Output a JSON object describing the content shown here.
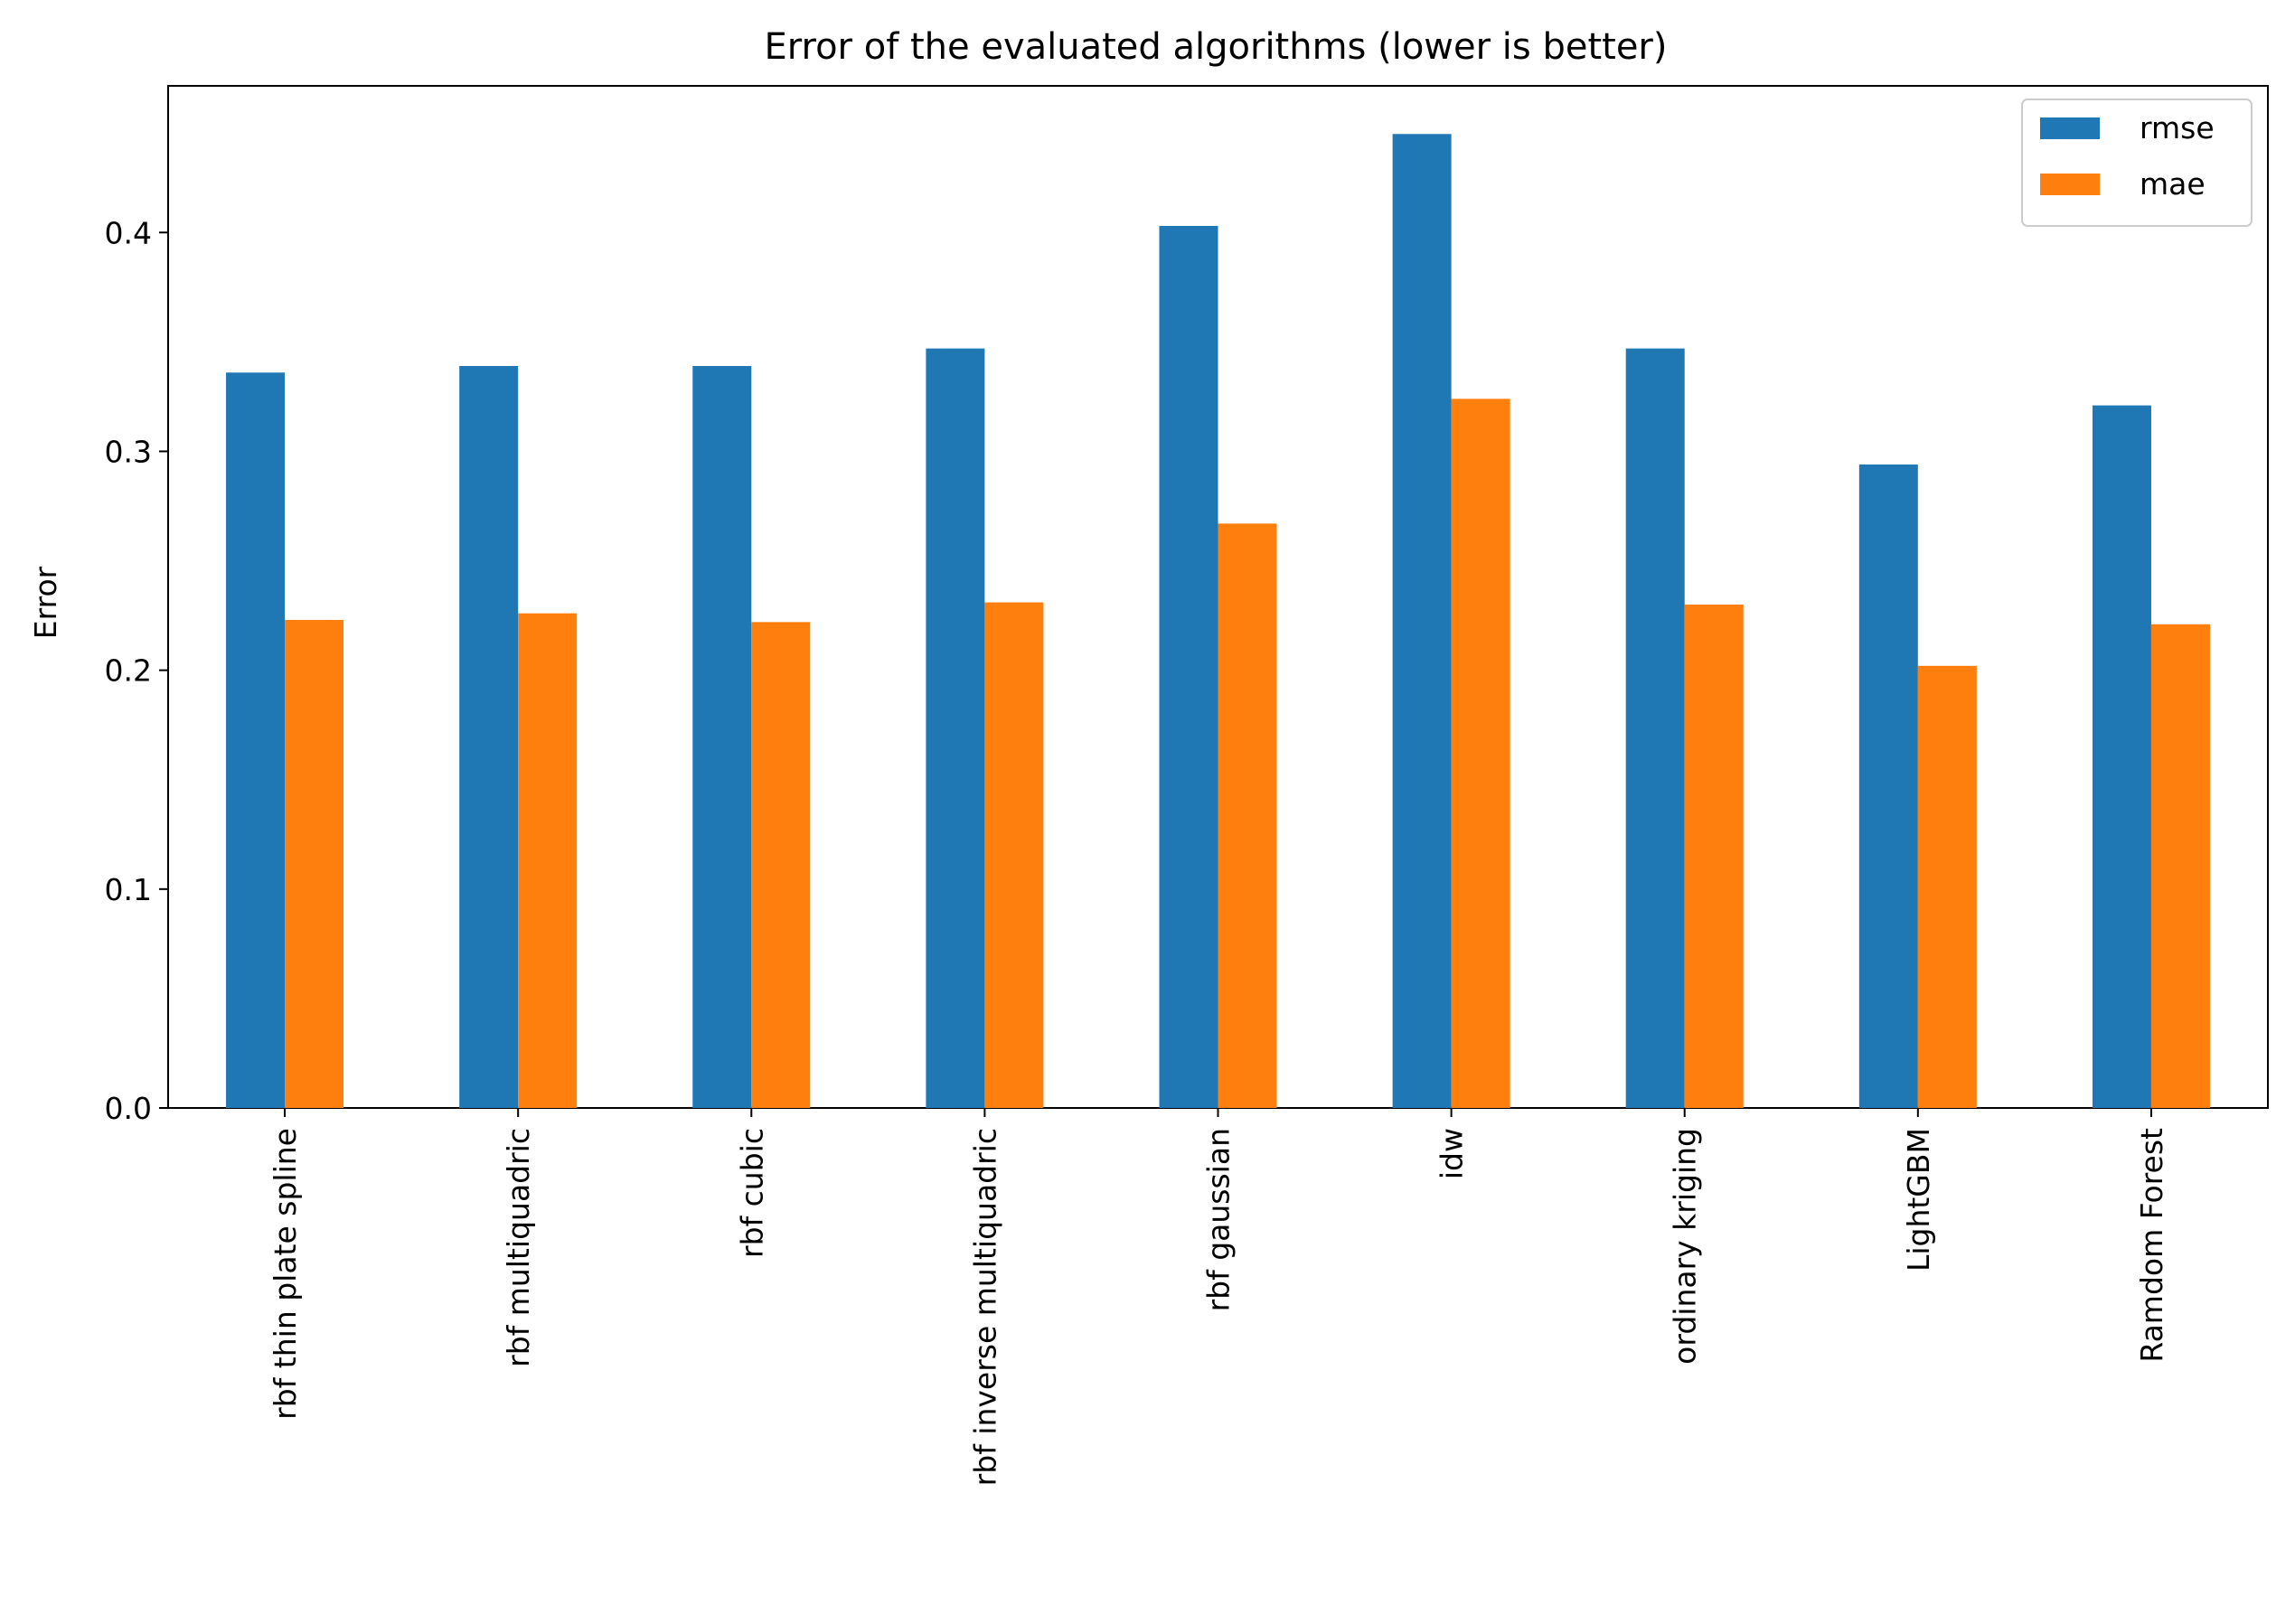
{
  "chart_data": {
    "type": "bar",
    "title": "Error of the evaluated algorithms (lower is better)",
    "xlabel": "",
    "ylabel": "Error",
    "categories": [
      "rbf thin plate spline",
      "rbf multiquadric",
      "rbf cubic",
      "rbf inverse multiquadric",
      "rbf gaussian",
      "idw",
      "ordinary kriging",
      "LightGBM",
      "Ramdom Forest"
    ],
    "series": [
      {
        "name": "rmse",
        "color": "#1f77b4",
        "values": [
          0.336,
          0.339,
          0.339,
          0.347,
          0.403,
          0.445,
          0.347,
          0.294,
          0.321
        ]
      },
      {
        "name": "mae",
        "color": "#ff7f0e",
        "values": [
          0.223,
          0.226,
          0.222,
          0.231,
          0.267,
          0.324,
          0.23,
          0.202,
          0.221
        ]
      }
    ],
    "ylim": [
      0.0,
      0.467
    ],
    "yticks": [
      "0.0",
      "0.1",
      "0.2",
      "0.3",
      "0.4"
    ],
    "grid": false,
    "legend_position": "top-right"
  }
}
